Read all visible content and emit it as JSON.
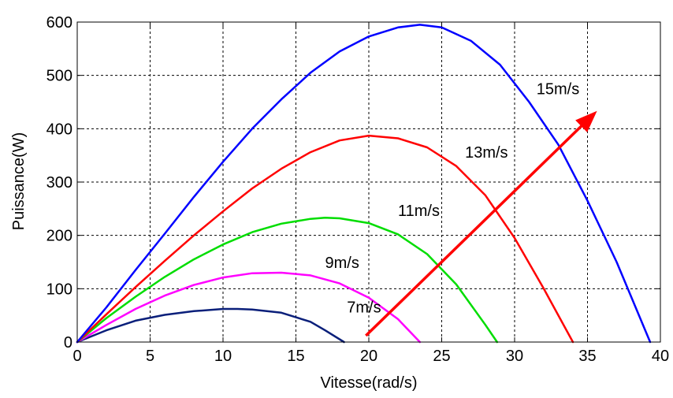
{
  "chart_data": {
    "type": "line",
    "title": "",
    "xlabel": "Vitesse(rad/s)",
    "ylabel": "Puissance(W)",
    "xlim": [
      0,
      40
    ],
    "ylim": [
      0,
      600
    ],
    "x_ticks": [
      0,
      5,
      10,
      15,
      20,
      25,
      30,
      35,
      40
    ],
    "y_ticks": [
      0,
      100,
      200,
      300,
      400,
      500,
      600
    ],
    "grid": true,
    "legend": "none",
    "series": [
      {
        "name": "7m/s",
        "color": "#0a1f7a",
        "x": [
          0,
          2,
          4,
          6,
          8,
          10,
          11,
          12,
          14,
          16,
          17,
          18.3
        ],
        "y": [
          0,
          22,
          40,
          51,
          58,
          62,
          62,
          61,
          55,
          38,
          22,
          0
        ]
      },
      {
        "name": "9m/s",
        "color": "#ff00ff",
        "x": [
          0,
          2,
          4,
          6,
          8,
          10,
          12,
          14,
          16,
          18,
          20,
          22,
          23.5
        ],
        "y": [
          0,
          32,
          62,
          87,
          107,
          121,
          129,
          130,
          125,
          110,
          83,
          43,
          0
        ]
      },
      {
        "name": "11m/s",
        "color": "#00dd00",
        "x": [
          0,
          2,
          4,
          6,
          8,
          10,
          12,
          14,
          16,
          17,
          18,
          20,
          22,
          24,
          26,
          28,
          28.8
        ],
        "y": [
          0,
          45,
          85,
          122,
          155,
          183,
          206,
          222,
          231,
          233,
          232,
          223,
          202,
          165,
          108,
          32,
          0
        ]
      },
      {
        "name": "13m/s",
        "color": "#ff0000",
        "x": [
          0,
          2,
          4,
          6,
          8,
          10,
          12,
          14,
          16,
          18,
          20,
          22,
          24,
          26,
          28,
          30,
          32,
          34
        ],
        "y": [
          0,
          52,
          103,
          152,
          200,
          245,
          288,
          325,
          356,
          378,
          387,
          382,
          365,
          330,
          275,
          195,
          100,
          0
        ]
      },
      {
        "name": "15m/s",
        "color": "#0000ff",
        "x": [
          0,
          2,
          4,
          6,
          8,
          10,
          12,
          14,
          16,
          18,
          20,
          22,
          23.5,
          25,
          27,
          29,
          31,
          33,
          35,
          37,
          39.3
        ],
        "y": [
          0,
          65,
          135,
          203,
          272,
          338,
          400,
          455,
          505,
          545,
          573,
          590,
          595,
          590,
          565,
          520,
          450,
          370,
          265,
          150,
          0
        ]
      }
    ],
    "annotations": [
      {
        "text": "7m/s",
        "x": 18.5,
        "y": 64
      },
      {
        "text": "9m/s",
        "x": 17,
        "y": 148
      },
      {
        "text": "11m/s",
        "x": 22,
        "y": 245
      },
      {
        "text": "13m/s",
        "x": 26.6,
        "y": 355
      },
      {
        "text": "15m/s",
        "x": 31.5,
        "y": 474
      }
    ],
    "arrow": {
      "color": "#ff0000",
      "from": [
        19.8,
        12
      ],
      "to": [
        35.6,
        432
      ]
    }
  }
}
